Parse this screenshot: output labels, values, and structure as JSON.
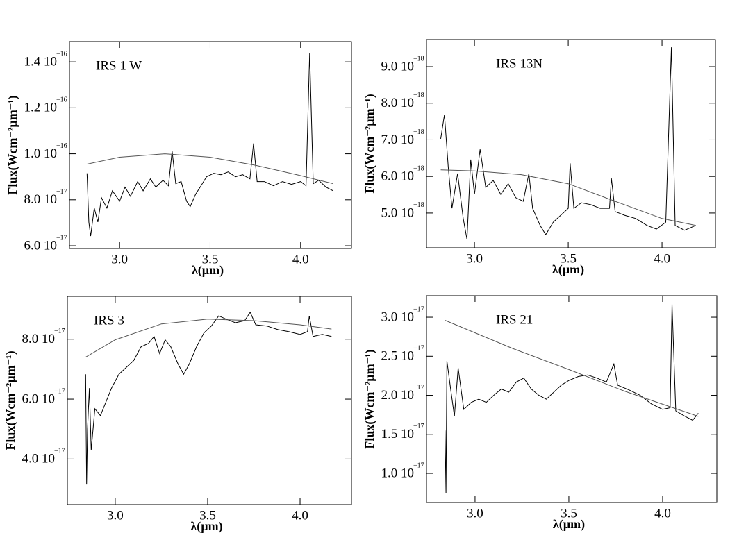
{
  "chart_data": [
    {
      "type": "line",
      "label": "IRS 1 W",
      "xlabel": "λ(µm)",
      "ylabel": "Flux(Wcm⁻²µm⁻¹)",
      "xlim": [
        2.723,
        4.281
      ],
      "xticks": [
        {
          "value": 3.0,
          "label": "3.0"
        },
        3.5,
        {
          "value": 4.0,
          "label": "4.0"
        }
      ],
      "ylim": [
        5.88e-17,
        1.488e-16
      ],
      "yticks": [
        {
          "value": 6e-17,
          "label": "6.0 10",
          "exponent": "−17"
        },
        {
          "value": 8e-17,
          "label": "8.0 10",
          "exponent": "−17"
        },
        {
          "value": 1e-16,
          "label": "1.0 10",
          "exponent": "−16"
        },
        {
          "value": 1.2e-16,
          "label": "1.2 10",
          "exponent": "−16"
        },
        {
          "value": 1.4e-16,
          "label": "1.4 10",
          "exponent": "−16"
        }
      ],
      "series": [
        {
          "color": "#000000",
          "x": [
            2.82,
            2.83,
            2.84,
            2.86,
            2.88,
            2.9,
            2.93,
            2.96,
            3.0,
            3.03,
            3.06,
            3.1,
            3.13,
            3.17,
            3.2,
            3.24,
            3.27,
            3.29,
            3.31,
            3.34,
            3.37,
            3.39,
            3.42,
            3.45,
            3.48,
            3.52,
            3.56,
            3.6,
            3.64,
            3.68,
            3.72,
            3.74,
            3.76,
            3.8,
            3.85,
            3.9,
            3.95,
            4.0,
            4.03,
            4.05,
            4.07,
            4.1,
            4.14,
            4.18
          ],
          "values": [
            9.15e-17,
            7.03e-17,
            6.42e-17,
            7.64e-17,
            7.03e-17,
            8.09e-17,
            7.64e-17,
            8.39e-17,
            7.94e-17,
            8.55e-17,
            8.15e-17,
            8.79e-17,
            8.39e-17,
            8.91e-17,
            8.55e-17,
            8.85e-17,
            8.61e-17,
            1.012e-16,
            8.7e-17,
            8.79e-17,
            7.94e-17,
            7.7e-17,
            8.24e-17,
            8.61e-17,
            9e-17,
            9.15e-17,
            9.09e-17,
            9.21e-17,
            9e-17,
            9.09e-17,
            8.91e-17,
            1.045e-16,
            8.79e-17,
            8.79e-17,
            8.61e-17,
            8.79e-17,
            8.67e-17,
            8.79e-17,
            8.61e-17,
            1.439e-16,
            8.7e-17,
            8.85e-17,
            8.55e-17,
            8.39e-17
          ]
        },
        {
          "color": "#555555",
          "x": [
            2.82,
            3.0,
            3.25,
            3.5,
            3.75,
            4.0,
            4.18
          ],
          "values": [
            9.55e-17,
            9.85e-17,
            1e-16,
            9.85e-17,
            9.5e-17,
            9.05e-17,
            8.7e-17
          ]
        }
      ]
    },
    {
      "type": "line",
      "label": "IRS 13N",
      "xlabel": "λ(µm)",
      "ylabel": "Flux(Wcm⁻²µm⁻¹)",
      "xlim": [
        2.744,
        4.285
      ],
      "xticks": [
        {
          "value": 3.0,
          "label": "3.0"
        },
        3.5,
        {
          "value": 4.0,
          "label": "4.0"
        }
      ],
      "ylim": [
        4.05e-18,
        9.74e-18
      ],
      "yticks": [
        {
          "value": 5e-18,
          "label": "5.0 10",
          "exponent": "−18"
        },
        {
          "value": 6e-18,
          "label": "6.0 10",
          "exponent": "−18"
        },
        {
          "value": 7e-18,
          "label": "7.0 10",
          "exponent": "−18"
        },
        {
          "value": 8e-18,
          "label": "8.0 10",
          "exponent": "−18"
        },
        {
          "value": 9e-18,
          "label": "9.0 10",
          "exponent": "−18"
        }
      ],
      "series": [
        {
          "color": "#000000",
          "x": [
            2.82,
            2.84,
            2.86,
            2.88,
            2.91,
            2.94,
            2.96,
            2.98,
            3.0,
            3.03,
            3.06,
            3.1,
            3.14,
            3.18,
            3.22,
            3.26,
            3.29,
            3.31,
            3.35,
            3.38,
            3.42,
            3.46,
            3.5,
            3.51,
            3.53,
            3.57,
            3.62,
            3.67,
            3.72,
            3.73,
            3.75,
            3.8,
            3.86,
            3.92,
            3.97,
            4.02,
            4.05,
            4.07,
            4.12,
            4.18
          ],
          "values": [
            7.03e-18,
            7.69e-18,
            6.27e-18,
            5.13e-18,
            6.08e-18,
            4.85e-18,
            4.28e-18,
            6.46e-18,
            5.51e-18,
            6.74e-18,
            5.7e-18,
            5.89e-18,
            5.51e-18,
            5.8e-18,
            5.42e-18,
            5.32e-18,
            6.08e-18,
            5.13e-18,
            4.66e-18,
            4.41e-18,
            4.75e-18,
            4.94e-18,
            5.13e-18,
            6.36e-18,
            5.13e-18,
            5.28e-18,
            5.23e-18,
            5.13e-18,
            5.13e-18,
            5.95e-18,
            5.04e-18,
            4.94e-18,
            4.85e-18,
            4.66e-18,
            4.56e-18,
            4.75e-18,
            9.53e-18,
            4.66e-18,
            4.53e-18,
            4.66e-18
          ]
        },
        {
          "color": "#555555",
          "x": [
            2.82,
            3.0,
            3.25,
            3.5,
            3.75,
            4.0,
            4.18
          ],
          "values": [
            6.18e-18,
            6.15e-18,
            6.05e-18,
            5.8e-18,
            5.32e-18,
            4.85e-18,
            4.66e-18
          ]
        }
      ]
    },
    {
      "type": "line",
      "label": "IRS 3",
      "xlabel": "λ(µm)",
      "ylabel": "Flux(Wcm⁻²µm⁻¹)",
      "xlim": [
        2.741,
        4.278
      ],
      "xticks": [
        {
          "value": 3.0,
          "label": "3.0"
        },
        3.5,
        {
          "value": 4.0,
          "label": "4.0"
        }
      ],
      "ylim": [
        2.48e-17,
        9.43e-17
      ],
      "yticks": [
        {
          "value": 4e-17,
          "label": "4.0 10",
          "exponent": "−17"
        },
        {
          "value": 6e-17,
          "label": "6.0 10",
          "exponent": "−17"
        },
        {
          "value": 8e-17,
          "label": "8.0 10",
          "exponent": "−17"
        }
      ],
      "series": [
        {
          "color": "#000000",
          "x": [
            2.84,
            2.845,
            2.85,
            2.86,
            2.87,
            2.89,
            2.92,
            2.95,
            2.98,
            3.02,
            3.06,
            3.1,
            3.14,
            3.18,
            3.21,
            3.24,
            3.27,
            3.3,
            3.34,
            3.37,
            3.4,
            3.44,
            3.48,
            3.52,
            3.56,
            3.6,
            3.65,
            3.7,
            3.73,
            3.76,
            3.82,
            3.88,
            3.94,
            4.0,
            4.04,
            4.05,
            4.07,
            4.12,
            4.17
          ],
          "values": [
            6.83e-17,
            3.15e-17,
            4.99e-17,
            6.37e-17,
            4.3e-17,
            5.68e-17,
            5.45e-17,
            5.91e-17,
            6.37e-17,
            6.83e-17,
            7.06e-17,
            7.29e-17,
            7.75e-17,
            7.86e-17,
            8.09e-17,
            7.52e-17,
            7.98e-17,
            7.75e-17,
            7.17e-17,
            6.83e-17,
            7.17e-17,
            7.75e-17,
            8.21e-17,
            8.44e-17,
            8.78e-17,
            8.67e-17,
            8.55e-17,
            8.62e-17,
            8.9e-17,
            8.48e-17,
            8.44e-17,
            8.32e-17,
            8.25e-17,
            8.16e-17,
            8.25e-17,
            8.78e-17,
            8.09e-17,
            8.16e-17,
            8.09e-17
          ]
        },
        {
          "color": "#555555",
          "x": [
            2.84,
            3.0,
            3.25,
            3.5,
            3.75,
            4.0,
            4.17
          ],
          "values": [
            7.4e-17,
            7.98e-17,
            8.51e-17,
            8.67e-17,
            8.62e-17,
            8.48e-17,
            8.34e-17
          ]
        }
      ]
    },
    {
      "type": "line",
      "label": "IRS 21",
      "xlabel": "λ(µm)",
      "ylabel": "Flux(Wcm⁻²µm⁻¹)",
      "xlim": [
        2.741,
        4.289
      ],
      "xticks": [
        {
          "value": 3.0,
          "label": "3.0"
        },
        3.5,
        {
          "value": 4.0,
          "label": "4.0"
        }
      ],
      "ylim": [
        6.27e-18,
        3.276e-17
      ],
      "yticks": [
        {
          "value": 1e-17,
          "label": "1.0 10",
          "exponent": "−17"
        },
        {
          "value": 1.5e-17,
          "label": "1.5 10",
          "exponent": "−17"
        },
        {
          "value": 2e-17,
          "label": "2.0 10",
          "exponent": "−17"
        },
        {
          "value": 2.5e-17,
          "label": "2.5 10",
          "exponent": "−17"
        },
        {
          "value": 3e-17,
          "label": "3.0 10",
          "exponent": "−17"
        }
      ],
      "series": [
        {
          "color": "#000000",
          "x": [
            2.84,
            2.845,
            2.85,
            2.87,
            2.89,
            2.91,
            2.94,
            2.98,
            3.02,
            3.06,
            3.1,
            3.14,
            3.18,
            3.22,
            3.26,
            3.3,
            3.34,
            3.38,
            3.42,
            3.46,
            3.5,
            3.55,
            3.6,
            3.65,
            3.7,
            3.74,
            3.76,
            3.82,
            3.88,
            3.94,
            4.0,
            4.04,
            4.05,
            4.07,
            4.12,
            4.16,
            4.19
          ],
          "values": [
            1.55e-17,
            7.5e-18,
            2.44e-17,
            2.08e-17,
            1.73e-17,
            2.35e-17,
            1.82e-17,
            1.91e-17,
            1.95e-17,
            1.91e-17,
            2e-17,
            2.08e-17,
            2.04e-17,
            2.17e-17,
            2.22e-17,
            2.08e-17,
            2e-17,
            1.95e-17,
            2.04e-17,
            2.13e-17,
            2.19e-17,
            2.24e-17,
            2.26e-17,
            2.22e-17,
            2.17e-17,
            2.4e-17,
            2.13e-17,
            2.07e-17,
            2e-17,
            1.89e-17,
            1.82e-17,
            1.84e-17,
            3.17e-17,
            1.8e-17,
            1.73e-17,
            1.68e-17,
            1.77e-17
          ]
        },
        {
          "color": "#555555",
          "x": [
            2.84,
            3.2,
            3.5,
            3.8,
            4.19
          ],
          "values": [
            2.96e-17,
            2.6e-17,
            2.33e-17,
            2.05e-17,
            1.73e-17
          ]
        }
      ]
    }
  ]
}
